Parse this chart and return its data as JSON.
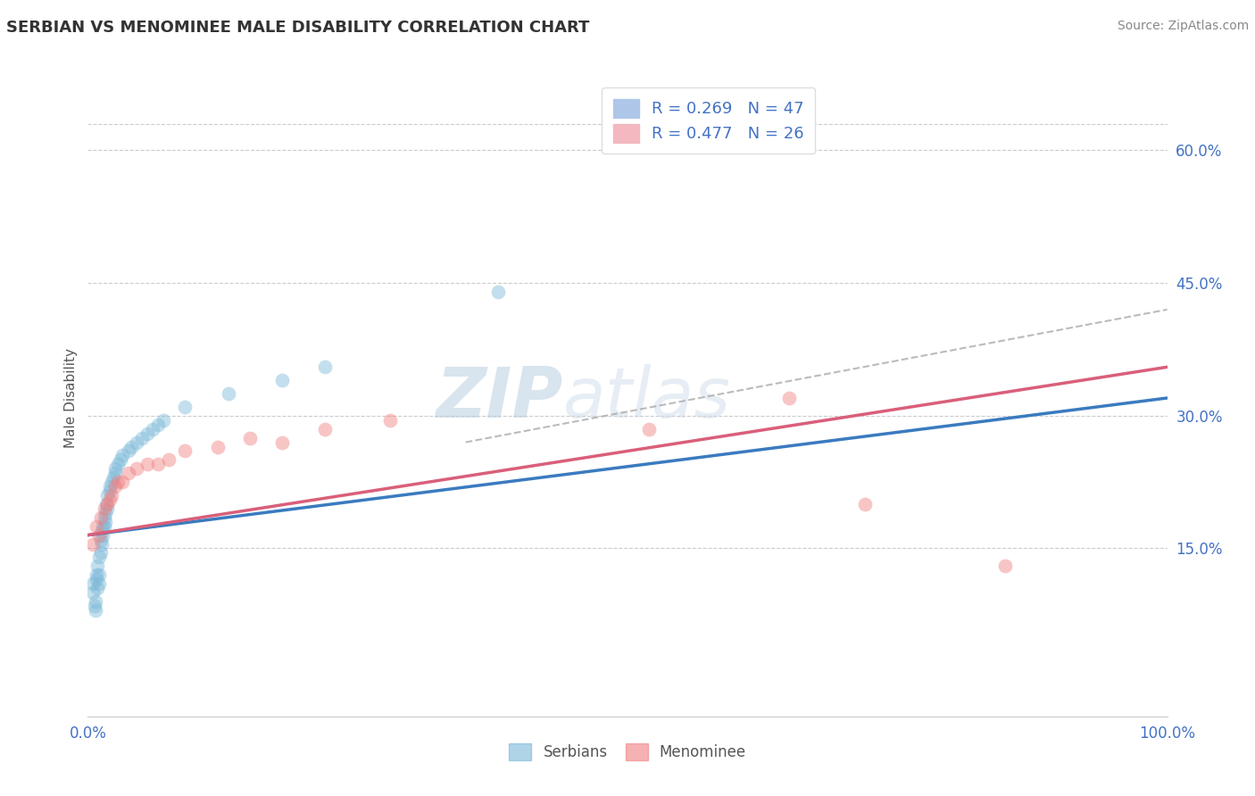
{
  "title": "SERBIAN VS MENOMINEE MALE DISABILITY CORRELATION CHART",
  "source": "Source: ZipAtlas.com",
  "ylabel_label": "Male Disability",
  "xlim": [
    0.0,
    1.0
  ],
  "ylim": [
    -0.04,
    0.68
  ],
  "x_ticks": [
    0.0,
    0.25,
    0.5,
    0.75,
    1.0
  ],
  "x_tick_labels": [
    "0.0%",
    "",
    "",
    "",
    "100.0%"
  ],
  "y_ticks": [
    0.15,
    0.3,
    0.45,
    0.6
  ],
  "y_tick_labels": [
    "15.0%",
    "30.0%",
    "45.0%",
    "60.0%"
  ],
  "legend_label_serbians": "Serbians",
  "legend_label_menominee": "Menominee",
  "serbian_color": "#7ab8d9",
  "menominee_color": "#f08080",
  "serbian_line_color": "#3a7bbf",
  "menominee_line_color": "#d95f7a",
  "background_color": "#ffffff",
  "grid_color": "#cccccc",
  "watermark": "ZIPatlas",
  "serbians_x": [
    0.005,
    0.005,
    0.006,
    0.007,
    0.007,
    0.008,
    0.008,
    0.009,
    0.009,
    0.01,
    0.01,
    0.01,
    0.012,
    0.012,
    0.013,
    0.013,
    0.014,
    0.014,
    0.015,
    0.015,
    0.016,
    0.016,
    0.017,
    0.018,
    0.018,
    0.02,
    0.02,
    0.022,
    0.024,
    0.025,
    0.025,
    0.028,
    0.03,
    0.032,
    0.038,
    0.04,
    0.045,
    0.05,
    0.055,
    0.06,
    0.065,
    0.07,
    0.09,
    0.13,
    0.18,
    0.22,
    0.38
  ],
  "serbians_y": [
    0.1,
    0.11,
    0.085,
    0.08,
    0.09,
    0.12,
    0.115,
    0.13,
    0.105,
    0.14,
    0.12,
    0.11,
    0.145,
    0.16,
    0.17,
    0.155,
    0.175,
    0.165,
    0.185,
    0.175,
    0.19,
    0.18,
    0.2,
    0.21,
    0.195,
    0.215,
    0.22,
    0.225,
    0.23,
    0.24,
    0.235,
    0.245,
    0.25,
    0.255,
    0.26,
    0.265,
    0.27,
    0.275,
    0.28,
    0.285,
    0.29,
    0.295,
    0.31,
    0.325,
    0.34,
    0.355,
    0.44
  ],
  "menominee_x": [
    0.005,
    0.008,
    0.01,
    0.012,
    0.015,
    0.018,
    0.02,
    0.022,
    0.025,
    0.028,
    0.032,
    0.038,
    0.045,
    0.055,
    0.065,
    0.075,
    0.09,
    0.12,
    0.15,
    0.18,
    0.22,
    0.28,
    0.52,
    0.65,
    0.72,
    0.85
  ],
  "menominee_y": [
    0.155,
    0.175,
    0.165,
    0.185,
    0.195,
    0.2,
    0.205,
    0.21,
    0.22,
    0.225,
    0.225,
    0.235,
    0.24,
    0.245,
    0.245,
    0.25,
    0.26,
    0.265,
    0.275,
    0.27,
    0.285,
    0.295,
    0.285,
    0.32,
    0.2,
    0.13
  ],
  "serbian_line": [
    0.0,
    1.0,
    0.165,
    0.32
  ],
  "menominee_line": [
    0.0,
    1.0,
    0.165,
    0.355
  ],
  "dashed_line": [
    0.35,
    1.0,
    0.27,
    0.42
  ]
}
